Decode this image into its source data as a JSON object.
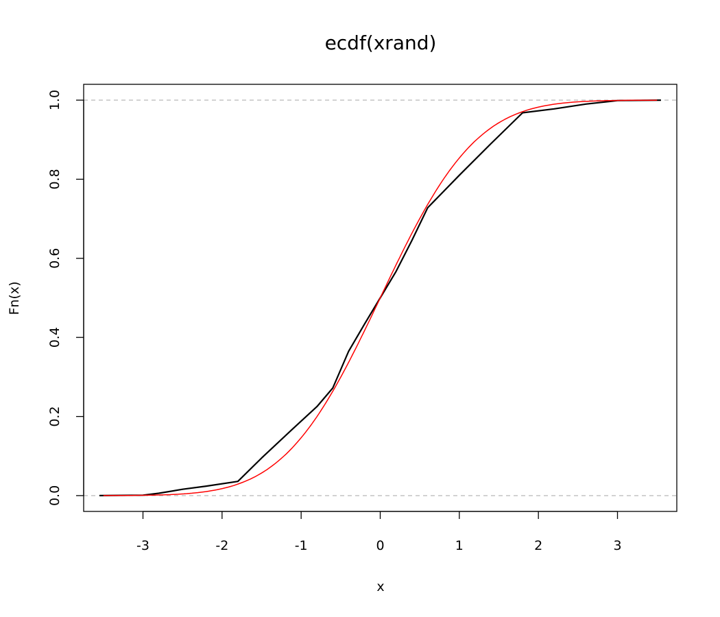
{
  "chart_data": {
    "type": "line",
    "title": "ecdf(xrand)",
    "xlabel": "x",
    "ylabel": "Fn(x)",
    "xlim": [
      -3.75,
      3.75
    ],
    "ylim": [
      -0.04,
      1.04
    ],
    "x_ticks": [
      -3,
      -2,
      -1,
      0,
      1,
      2,
      3
    ],
    "x_tick_labels": [
      "-3",
      "-2",
      "-1",
      "0",
      "1",
      "2",
      "3"
    ],
    "y_ticks": [
      0,
      0.2,
      0.4,
      0.6,
      0.8,
      1
    ],
    "y_tick_labels": [
      "0.0",
      "0.2",
      "0.4",
      "0.6",
      "0.8",
      "1.0"
    ],
    "reference_lines": [
      0,
      1
    ],
    "grid": false,
    "legend": "none",
    "series": [
      {
        "color": "#000000",
        "x": [
          -3.55,
          -3.0,
          -2.8,
          -2.5,
          -2.2,
          -1.8,
          -1.5,
          -1.1,
          -0.8,
          -0.6,
          -0.4,
          -0.2,
          0.0,
          0.2,
          0.4,
          0.6,
          1.0,
          1.4,
          1.8,
          2.2,
          2.6,
          3.0,
          3.55
        ],
        "y": [
          0.0,
          0.001,
          0.006,
          0.016,
          0.024,
          0.036,
          0.095,
          0.17,
          0.225,
          0.272,
          0.365,
          0.433,
          0.5,
          0.567,
          0.645,
          0.728,
          0.81,
          0.89,
          0.968,
          0.978,
          0.99,
          0.999,
          1.0
        ]
      },
      {
        "color": "#ff0000",
        "type": "normal_cdf",
        "mean": 0,
        "sd": 0.95,
        "x_range": [
          -3.5,
          3.5
        ]
      }
    ],
    "colors": {
      "reference_line": "#bebebe",
      "axis": "#000000"
    }
  }
}
